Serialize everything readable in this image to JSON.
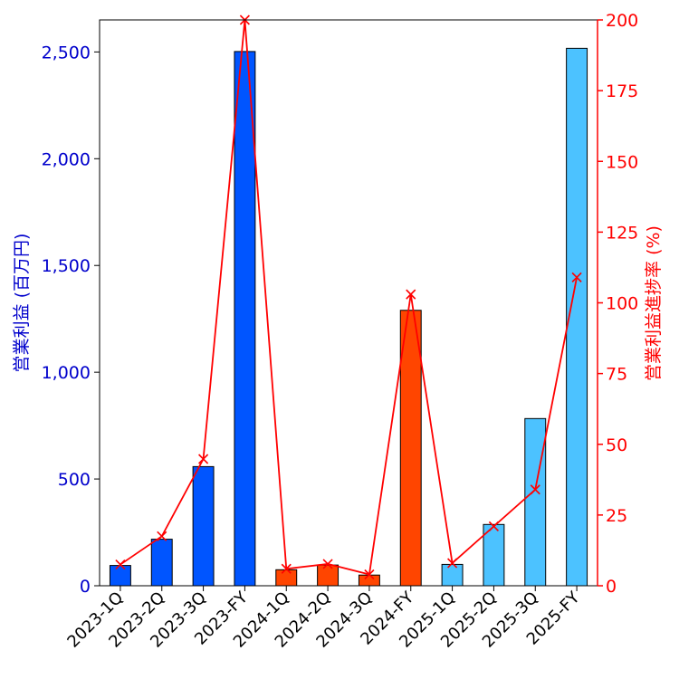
{
  "chart_data": {
    "type": "bar",
    "categories": [
      "2023-1Q",
      "2023-2Q",
      "2023-3Q",
      "2023-FY",
      "2024-1Q",
      "2024-2Q",
      "2024-3Q",
      "2024-FY",
      "2025-1Q",
      "2025-2Q",
      "2025-3Q",
      "2025-FY"
    ],
    "series": [
      {
        "name": "",
        "kind": "bar",
        "axis": "left",
        "values": [
          95,
          218,
          558,
          2502,
          75,
          97,
          50,
          1290,
          100,
          287,
          783,
          2517
        ]
      },
      {
        "name": "",
        "kind": "line",
        "axis": "right",
        "color": "#ff0000",
        "values": [
          7.5,
          17.5,
          44.8,
          200,
          6,
          7.7,
          4,
          103,
          8,
          21,
          34,
          109
        ]
      }
    ],
    "bar_colors": [
      "#0055ff",
      "#0055ff",
      "#0055ff",
      "#0055ff",
      "#ff4500",
      "#ff4500",
      "#ff4500",
      "#ff4500",
      "#4cc2ff",
      "#4cc2ff",
      "#4cc2ff",
      "#4cc2ff"
    ],
    "ylabel": "営業利益 (百万円)",
    "y2label": "営業利益進捗率 (%)",
    "ylim": [
      0,
      2650
    ],
    "y2lim": [
      0,
      200
    ],
    "yticks": [
      0,
      500,
      1000,
      1500,
      2000,
      2500
    ],
    "ytick_labels": [
      "0",
      "500",
      "1,000",
      "1,500",
      "2,000",
      "2,500"
    ],
    "y2ticks": [
      0,
      25,
      50,
      75,
      100,
      125,
      150,
      175,
      200
    ],
    "y2tick_labels": [
      "0",
      "25",
      "50",
      "75",
      "100",
      "125",
      "150",
      "175",
      "200"
    ],
    "left_axis_color": "#0000cc",
    "right_axis_color": "#ff0000",
    "grid": false,
    "legend": "none"
  }
}
